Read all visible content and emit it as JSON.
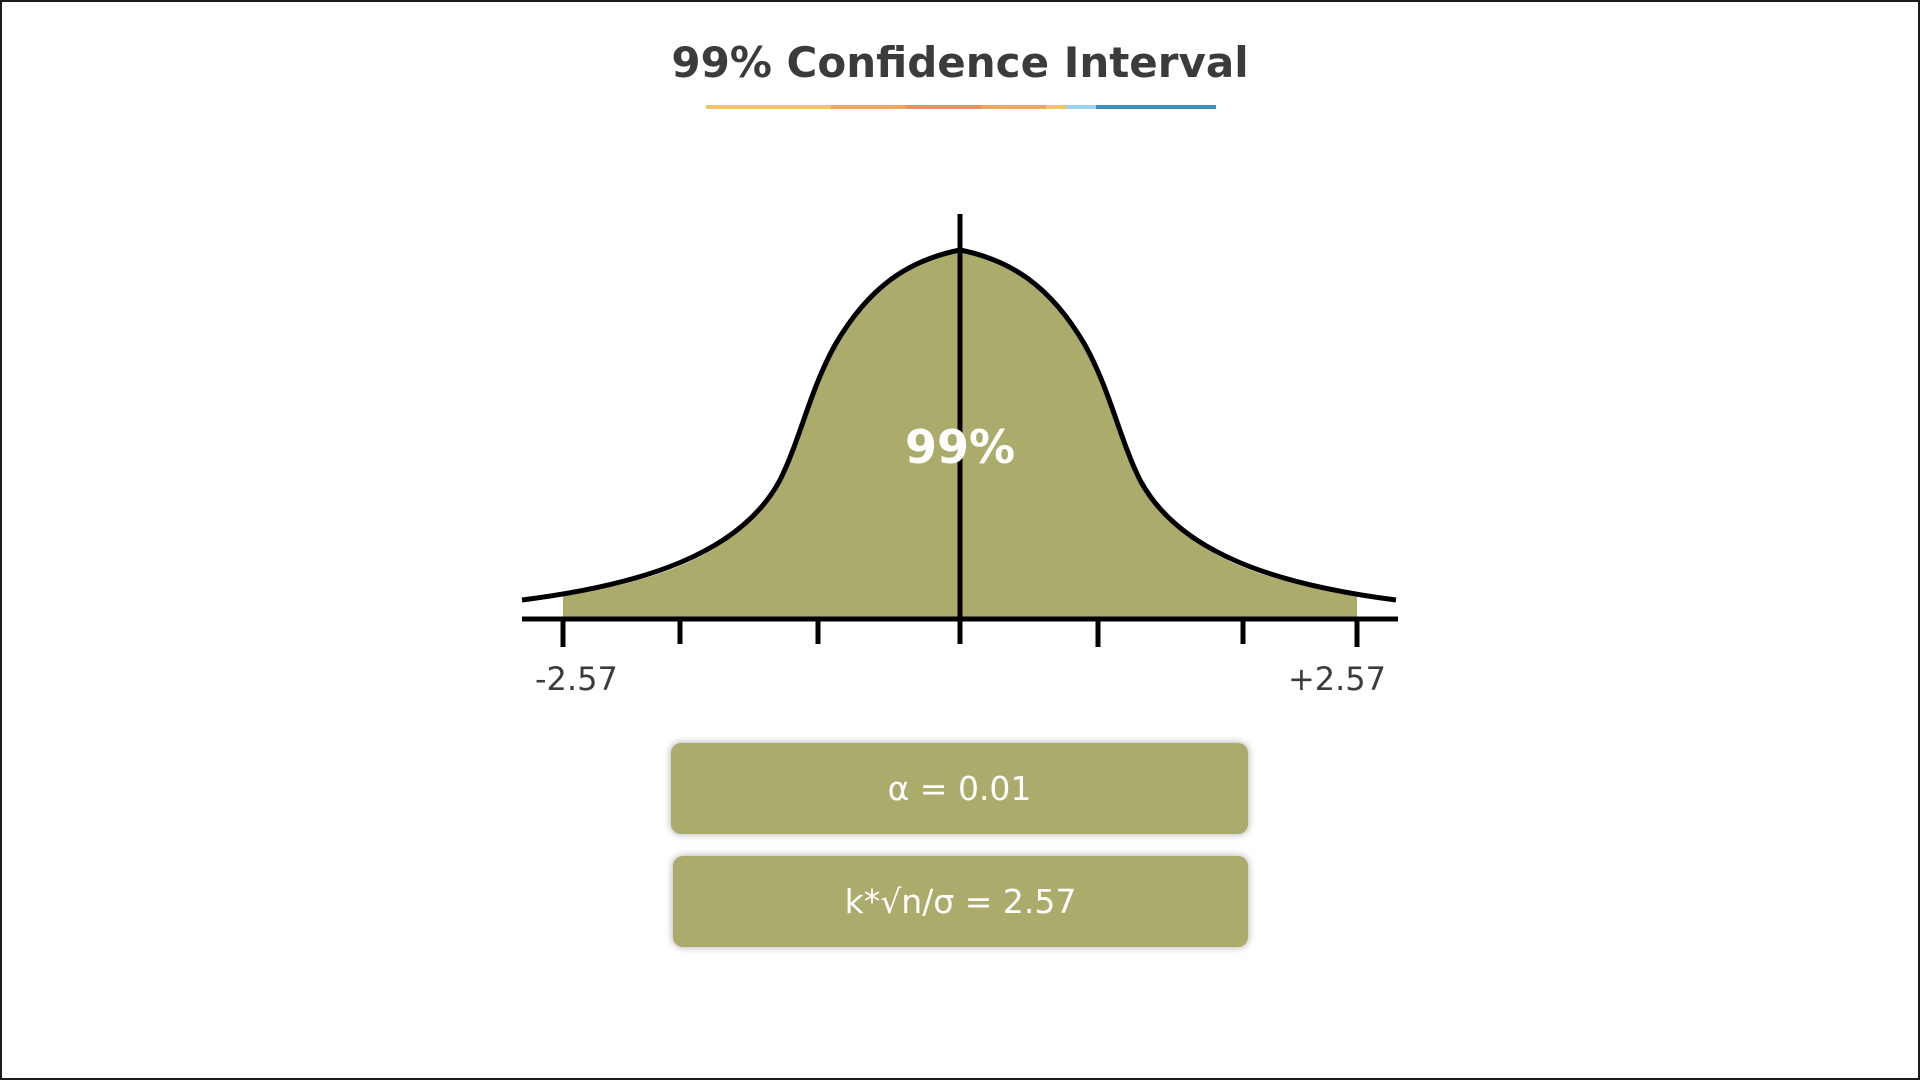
{
  "title": "99% Confidence Interval",
  "title_underline_colors": [
    "#f5c46a",
    "#f0a55e",
    "#ec8e66",
    "#f0a55e",
    "#f5c46a",
    "#9bd3ec",
    "#3f8fbf"
  ],
  "fill_color": "#abab6b",
  "curve_color": "#000000",
  "center_label": "99%",
  "tick_labels": {
    "left": "-2.57",
    "right": "+2.57"
  },
  "info_boxes": {
    "alpha": "α = 0.01",
    "k_formula": "k*√n/σ = 2.57"
  }
}
